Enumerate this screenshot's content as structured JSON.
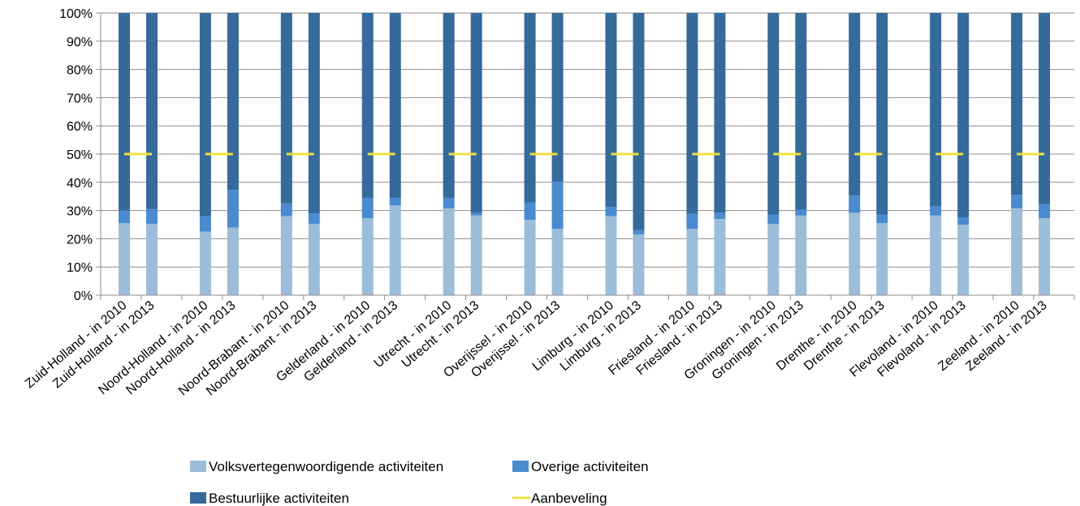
{
  "chart_data": {
    "type": "bar",
    "stacked": true,
    "percent_scale": true,
    "title": "",
    "xlabel": "",
    "ylabel": "",
    "ylim": [
      0,
      100
    ],
    "y_tick_labels": [
      "0%",
      "10%",
      "20%",
      "30%",
      "40%",
      "50%",
      "60%",
      "70%",
      "80%",
      "90%",
      "100%"
    ],
    "grid": true,
    "legend_position": "bottom",
    "categories": [
      "Zuid-Holland - in 2010",
      "Zuid-Holland - in 2013",
      "Noord-Holland - in 2010",
      "Noord-Holland - in 2013",
      "Noord-Brabant - in 2010",
      "Noord-Brabant - in 2013",
      "Gelderland - in 2010",
      "Gelderland - in 2013",
      "Utrecht - in 2010",
      "Utrecht - in 2013",
      "Overijssel - in 2010",
      "Overijssel - in 2013",
      "Limburg - in 2010",
      "Limburg - in 2013",
      "Friesland - in 2010",
      "Friesland - in 2013",
      "Groningen - in 2010",
      "Groningen - in 2013",
      "Drenthe - in 2010",
      "Drenthe - in 2013",
      "Flevoland - in 2010",
      "Flevoland - in 2013",
      "Zeeland - in 2010",
      "Zeeland - in 2013"
    ],
    "series": [
      {
        "name": "Volksvertegenwoordigende activiteiten",
        "color": "#9cbdd9",
        "values": [
          25.5,
          25.3,
          22.5,
          24,
          28,
          25.3,
          27.3,
          31.8,
          30.8,
          28.3,
          26.7,
          23.5,
          28,
          21.5,
          23.5,
          27,
          25.3,
          28.2,
          29.2,
          25.5,
          28.2,
          25,
          30.8,
          27.3
        ]
      },
      {
        "name": "Overige activiteiten",
        "color": "#4a8bd0",
        "values": [
          4.5,
          5.2,
          5.5,
          13.3,
          4.6,
          3.7,
          7.2,
          2.7,
          3.7,
          0.9,
          6.1,
          16.7,
          3.3,
          1.6,
          5.3,
          2.3,
          3.3,
          2.1,
          6.1,
          3.1,
          3.3,
          2.6,
          4.8,
          5
        ]
      },
      {
        "name": "Bestuurlijke activiteiten",
        "color": "#356a9a",
        "values": [
          70,
          69.5,
          72,
          62.7,
          67.4,
          71,
          65.5,
          65.5,
          65.5,
          70.8,
          67.2,
          59.8,
          68.7,
          76.9,
          71.2,
          70.7,
          71.4,
          69.7,
          64.7,
          71.4,
          68.5,
          72.4,
          64.4,
          67.7
        ]
      }
    ],
    "reference_line": {
      "name": "Aanbeveling",
      "color": "#f0e040",
      "value": 50
    }
  }
}
